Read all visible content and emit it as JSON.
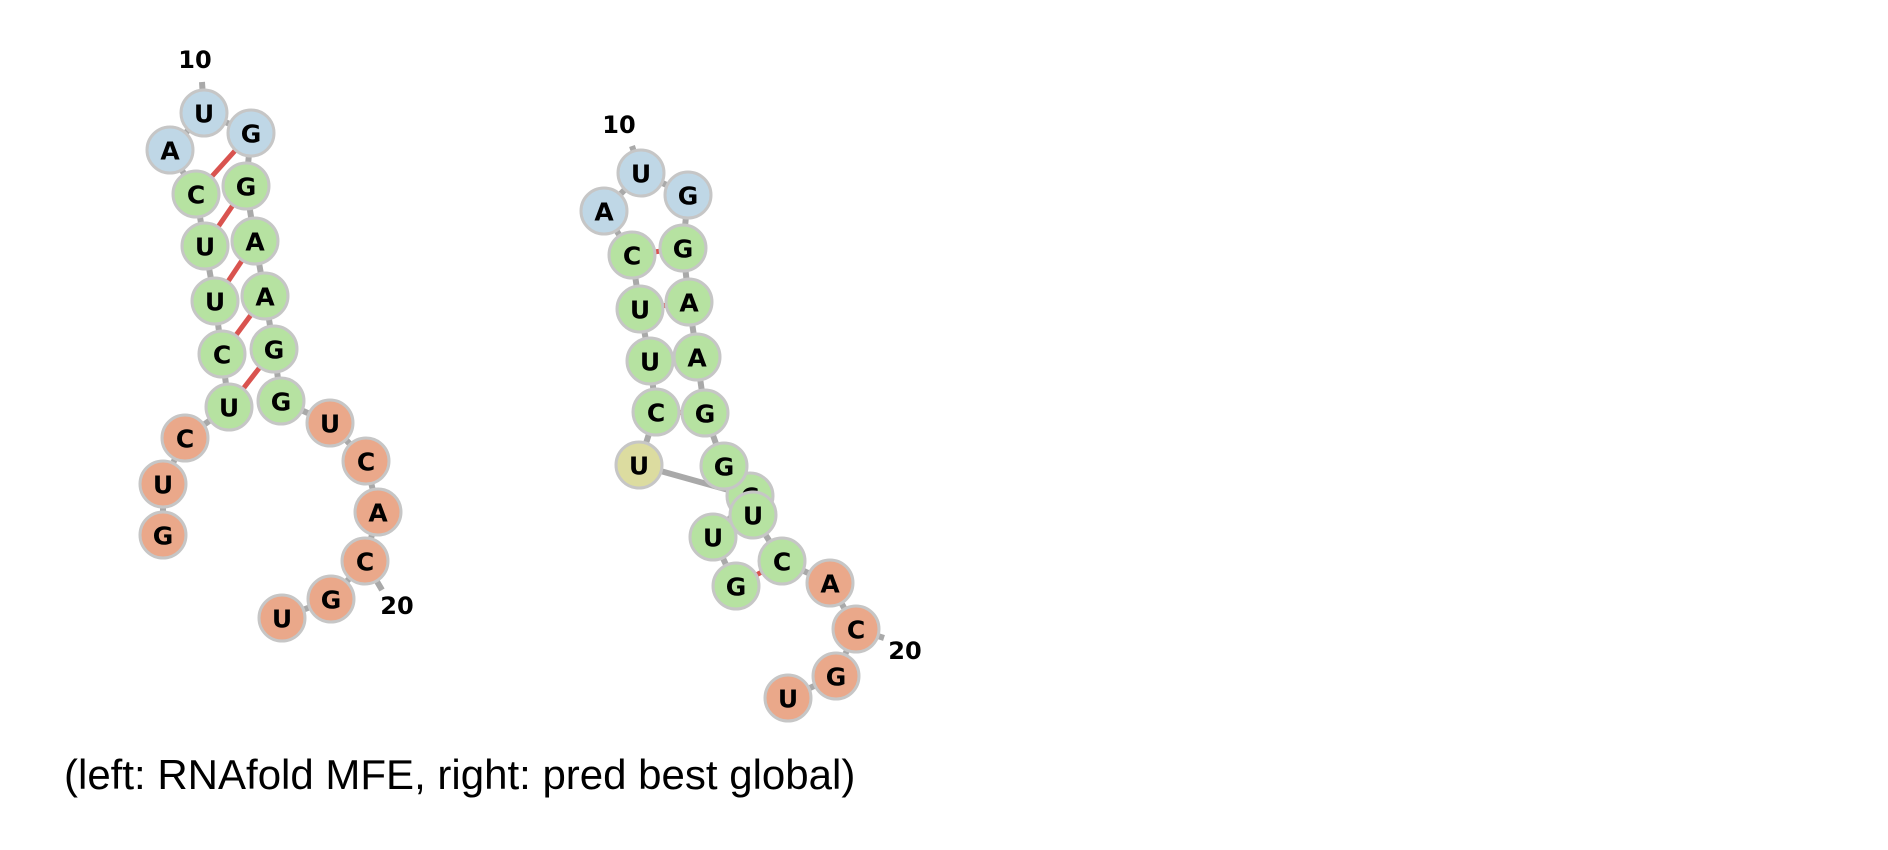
{
  "caption": "(left: RNAfold MFE, right: pred best global)",
  "colors": {
    "loop": "#bfd7e6",
    "stem": "#b6e2a1",
    "unpaired": "#eaa88a",
    "bulge": "#dcdca0",
    "backbone": "#a9a9a9",
    "pair": "#d9534f",
    "highlight": "#e0342b"
  },
  "structures": [
    {
      "name": "rnafold-mfe",
      "labels": [
        {
          "text": "10"
        },
        {
          "text": "20"
        }
      ],
      "nucleotides": [
        {
          "base": "G",
          "region": "unpaired"
        },
        {
          "base": "U",
          "region": "unpaired"
        },
        {
          "base": "C",
          "region": "unpaired"
        },
        {
          "base": "U",
          "region": "stem"
        },
        {
          "base": "C",
          "region": "stem"
        },
        {
          "base": "U",
          "region": "stem"
        },
        {
          "base": "U",
          "region": "stem"
        },
        {
          "base": "C",
          "region": "stem"
        },
        {
          "base": "A",
          "region": "loop"
        },
        {
          "base": "U",
          "region": "loop"
        },
        {
          "base": "G",
          "region": "loop"
        },
        {
          "base": "G",
          "region": "stem"
        },
        {
          "base": "A",
          "region": "stem"
        },
        {
          "base": "A",
          "region": "stem"
        },
        {
          "base": "G",
          "region": "stem"
        },
        {
          "base": "G",
          "region": "stem"
        },
        {
          "base": "U",
          "region": "unpaired"
        },
        {
          "base": "C",
          "region": "unpaired"
        },
        {
          "base": "A",
          "region": "unpaired"
        },
        {
          "base": "C",
          "region": "unpaired"
        },
        {
          "base": "G",
          "region": "unpaired"
        },
        {
          "base": "U",
          "region": "unpaired"
        }
      ],
      "pairs": [
        [
          4,
          15
        ],
        [
          5,
          14
        ],
        [
          6,
          13
        ],
        [
          7,
          12
        ],
        [
          8,
          11
        ]
      ]
    },
    {
      "name": "pred-best-global",
      "labels": [
        {
          "text": "10"
        },
        {
          "text": "20"
        }
      ],
      "nucleotides": [
        {
          "base": "G",
          "region": "stem"
        },
        {
          "base": "U",
          "region": "stem"
        },
        {
          "base": "C",
          "region": "stem"
        },
        {
          "base": "U",
          "region": "bulge"
        },
        {
          "base": "C",
          "region": "stem"
        },
        {
          "base": "U",
          "region": "stem"
        },
        {
          "base": "U",
          "region": "stem"
        },
        {
          "base": "C",
          "region": "stem"
        },
        {
          "base": "A",
          "region": "loop"
        },
        {
          "base": "U",
          "region": "loop"
        },
        {
          "base": "G",
          "region": "loop"
        },
        {
          "base": "G",
          "region": "stem"
        },
        {
          "base": "A",
          "region": "stem",
          "highlight": true
        },
        {
          "base": "A",
          "region": "stem"
        },
        {
          "base": "G",
          "region": "stem"
        },
        {
          "base": "G",
          "region": "stem"
        },
        {
          "base": "U",
          "region": "stem"
        },
        {
          "base": "C",
          "region": "stem"
        },
        {
          "base": "A",
          "region": "unpaired"
        },
        {
          "base": "C",
          "region": "unpaired"
        },
        {
          "base": "G",
          "region": "unpaired"
        },
        {
          "base": "U",
          "region": "unpaired"
        }
      ],
      "pairs": [
        [
          1,
          18
        ],
        [
          2,
          17
        ],
        [
          3,
          16
        ],
        [
          5,
          15
        ],
        [
          6,
          14
        ],
        [
          7,
          13
        ],
        [
          8,
          12
        ]
      ]
    }
  ]
}
